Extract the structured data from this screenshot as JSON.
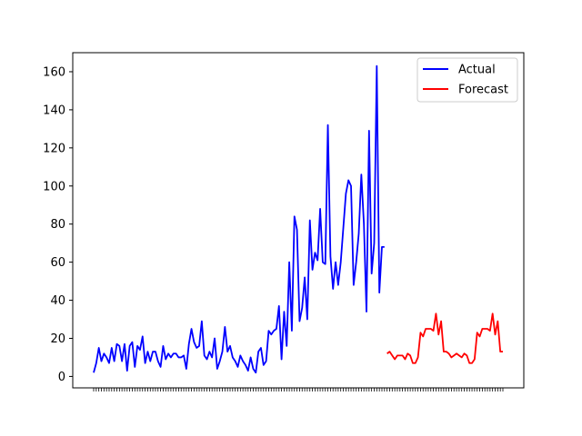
{
  "chart_data": {
    "type": "line",
    "title": "",
    "xlabel": "",
    "ylabel": "",
    "ylim": [
      -6,
      170
    ],
    "yticks": [
      0,
      20,
      40,
      60,
      80,
      100,
      120,
      140,
      160
    ],
    "legend": {
      "placement": "top-right"
    },
    "grid": false,
    "series": [
      {
        "name": "Actual",
        "color": "#0000ff",
        "values": [
          2,
          7,
          15,
          8,
          12,
          10,
          7,
          15,
          8,
          17,
          16,
          8,
          17,
          3,
          16,
          18,
          5,
          16,
          14,
          21,
          7,
          13,
          8,
          13,
          13,
          8,
          5,
          16,
          9,
          12,
          10,
          12,
          12,
          10,
          10,
          11,
          4,
          17,
          25,
          18,
          15,
          16,
          29,
          11,
          9,
          13,
          10,
          20,
          4,
          8,
          13,
          26,
          13,
          16,
          10,
          8,
          5,
          11,
          8,
          6,
          3,
          10,
          4,
          2,
          13,
          15,
          6,
          8,
          24,
          22,
          24,
          25,
          37,
          9,
          34,
          16,
          60,
          24,
          84,
          77,
          29,
          36,
          52,
          30,
          82,
          56,
          65,
          61,
          88,
          60,
          59,
          132,
          63,
          46,
          60,
          48,
          60,
          78,
          96,
          103,
          100,
          48,
          60,
          75,
          106,
          80,
          34,
          129,
          54,
          70,
          163,
          44,
          68,
          68
        ],
        "forecast_offset": 0
      },
      {
        "name": "Forecast",
        "color": "#ff0000",
        "values": [
          12,
          13,
          11,
          9,
          11,
          11,
          11,
          9,
          12,
          11,
          7,
          7,
          10,
          23,
          21,
          25,
          25,
          25,
          24,
          33,
          22,
          29,
          13,
          13,
          12,
          10,
          11,
          12,
          11,
          10,
          12,
          11,
          7,
          7,
          9,
          23,
          21,
          25,
          25,
          25,
          24,
          33,
          22,
          29,
          13,
          13
        ]
      }
    ]
  }
}
